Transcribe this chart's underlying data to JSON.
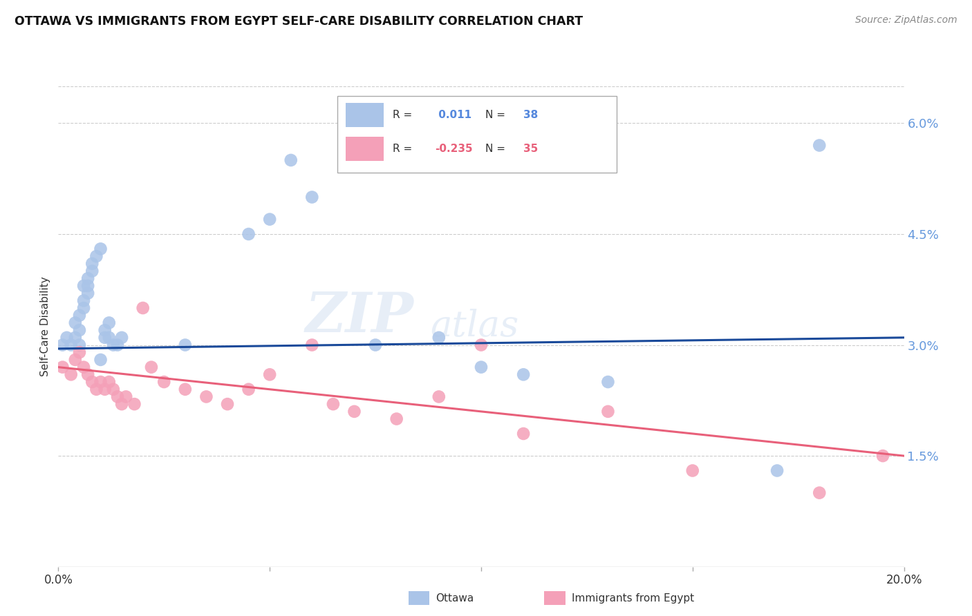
{
  "title": "OTTAWA VS IMMIGRANTS FROM EGYPT SELF-CARE DISABILITY CORRELATION CHART",
  "source": "Source: ZipAtlas.com",
  "ylabel": "Self-Care Disability",
  "xmin": 0.0,
  "xmax": 0.2,
  "ymin": 0.0,
  "ymax": 0.065,
  "yticks": [
    0.015,
    0.03,
    0.045,
    0.06
  ],
  "ytick_labels": [
    "1.5%",
    "3.0%",
    "4.5%",
    "6.0%"
  ],
  "xticks": [
    0.0,
    0.05,
    0.1,
    0.15,
    0.2
  ],
  "xtick_labels": [
    "0.0%",
    "",
    "",
    "",
    "20.0%"
  ],
  "ottawa_color": "#aac4e8",
  "egypt_color": "#f4a0b8",
  "ottawa_line_color": "#1a4a9a",
  "egypt_line_color": "#e8607a",
  "legend_R_ottawa": " 0.011",
  "legend_N_ottawa": "38",
  "legend_R_egypt": "-0.235",
  "legend_N_egypt": "35",
  "watermark_zip": "ZIP",
  "watermark_atlas": "atlas",
  "ottawa_x": [
    0.001,
    0.002,
    0.003,
    0.004,
    0.004,
    0.005,
    0.005,
    0.005,
    0.006,
    0.006,
    0.006,
    0.007,
    0.007,
    0.007,
    0.008,
    0.008,
    0.009,
    0.01,
    0.01,
    0.011,
    0.011,
    0.012,
    0.012,
    0.013,
    0.014,
    0.015,
    0.03,
    0.045,
    0.05,
    0.055,
    0.06,
    0.075,
    0.09,
    0.1,
    0.11,
    0.13,
    0.17,
    0.18
  ],
  "ottawa_y": [
    0.03,
    0.031,
    0.03,
    0.031,
    0.033,
    0.03,
    0.032,
    0.034,
    0.035,
    0.036,
    0.038,
    0.037,
    0.038,
    0.039,
    0.04,
    0.041,
    0.042,
    0.043,
    0.028,
    0.031,
    0.032,
    0.031,
    0.033,
    0.03,
    0.03,
    0.031,
    0.03,
    0.045,
    0.047,
    0.055,
    0.05,
    0.03,
    0.031,
    0.027,
    0.026,
    0.025,
    0.013,
    0.057
  ],
  "egypt_x": [
    0.001,
    0.003,
    0.004,
    0.005,
    0.006,
    0.007,
    0.008,
    0.009,
    0.01,
    0.011,
    0.012,
    0.013,
    0.014,
    0.015,
    0.016,
    0.018,
    0.02,
    0.022,
    0.025,
    0.03,
    0.035,
    0.04,
    0.045,
    0.05,
    0.06,
    0.065,
    0.07,
    0.08,
    0.09,
    0.1,
    0.11,
    0.13,
    0.15,
    0.18,
    0.195
  ],
  "egypt_y": [
    0.027,
    0.026,
    0.028,
    0.029,
    0.027,
    0.026,
    0.025,
    0.024,
    0.025,
    0.024,
    0.025,
    0.024,
    0.023,
    0.022,
    0.023,
    0.022,
    0.035,
    0.027,
    0.025,
    0.024,
    0.023,
    0.022,
    0.024,
    0.026,
    0.03,
    0.022,
    0.021,
    0.02,
    0.023,
    0.03,
    0.018,
    0.021,
    0.013,
    0.01,
    0.015
  ],
  "ottawa_trend_x": [
    0.0,
    0.2
  ],
  "ottawa_trend_y": [
    0.0295,
    0.031
  ],
  "egypt_trend_x": [
    0.0,
    0.2
  ],
  "egypt_trend_y": [
    0.027,
    0.015
  ]
}
